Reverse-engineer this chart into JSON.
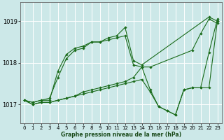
{
  "bg_color": "#cce8e8",
  "grid_color": "#ffffff",
  "line_color": "#1a6b1a",
  "xlabel": "Graphe pression niveau de la mer (hPa)",
  "xlim": [
    -0.5,
    23.5
  ],
  "ylim": [
    1016.55,
    1019.45
  ],
  "yticks": [
    1017,
    1018,
    1019
  ],
  "xticks": [
    0,
    1,
    2,
    3,
    4,
    5,
    6,
    7,
    8,
    9,
    10,
    11,
    12,
    13,
    14,
    15,
    16,
    17,
    18,
    19,
    20,
    21,
    22,
    23
  ],
  "series": [
    {
      "x": [
        0,
        1,
        2,
        3,
        4,
        5,
        6,
        7,
        8,
        9,
        10,
        11,
        12,
        13,
        14,
        22,
        23
      ],
      "y": [
        1017.1,
        1017.05,
        1017.1,
        1017.1,
        1017.8,
        1018.2,
        1018.35,
        1018.4,
        1018.5,
        1018.5,
        1018.6,
        1018.65,
        1018.85,
        1018.05,
        1017.95,
        1019.1,
        1019.0
      ]
    },
    {
      "x": [
        0,
        1,
        2,
        3,
        4,
        5,
        6,
        7,
        8,
        9,
        10,
        11,
        12,
        13,
        14,
        15,
        20,
        21,
        22,
        23
      ],
      "y": [
        1017.1,
        1017.05,
        1017.1,
        1017.15,
        1017.65,
        1018.1,
        1018.3,
        1018.35,
        1018.5,
        1018.5,
        1018.55,
        1018.6,
        1018.65,
        1017.95,
        1017.9,
        1017.9,
        1018.3,
        1018.7,
        1019.05,
        1018.95
      ]
    },
    {
      "x": [
        0,
        1,
        2,
        3,
        4,
        5,
        6,
        7,
        8,
        9,
        10,
        11,
        12,
        13,
        14,
        15,
        16,
        17,
        18,
        19,
        20,
        21,
        22,
        23
      ],
      "y": [
        1017.1,
        1017.0,
        1017.05,
        1017.05,
        1017.1,
        1017.15,
        1017.2,
        1017.3,
        1017.35,
        1017.4,
        1017.45,
        1017.5,
        1017.55,
        1017.65,
        1017.9,
        1017.35,
        1016.95,
        1016.85,
        1016.75,
        1017.35,
        1017.4,
        1017.4,
        1018.25,
        1019.05
      ]
    },
    {
      "x": [
        0,
        1,
        2,
        3,
        4,
        5,
        6,
        7,
        8,
        9,
        10,
        11,
        12,
        13,
        14,
        15,
        16,
        17,
        18,
        19,
        20,
        21,
        22,
        23
      ],
      "y": [
        1017.1,
        1017.0,
        1017.05,
        1017.05,
        1017.1,
        1017.15,
        1017.2,
        1017.25,
        1017.3,
        1017.35,
        1017.4,
        1017.45,
        1017.5,
        1017.55,
        1017.6,
        1017.3,
        1016.95,
        1016.85,
        1016.75,
        1017.35,
        1017.4,
        1017.4,
        1017.4,
        1019.0
      ]
    }
  ]
}
